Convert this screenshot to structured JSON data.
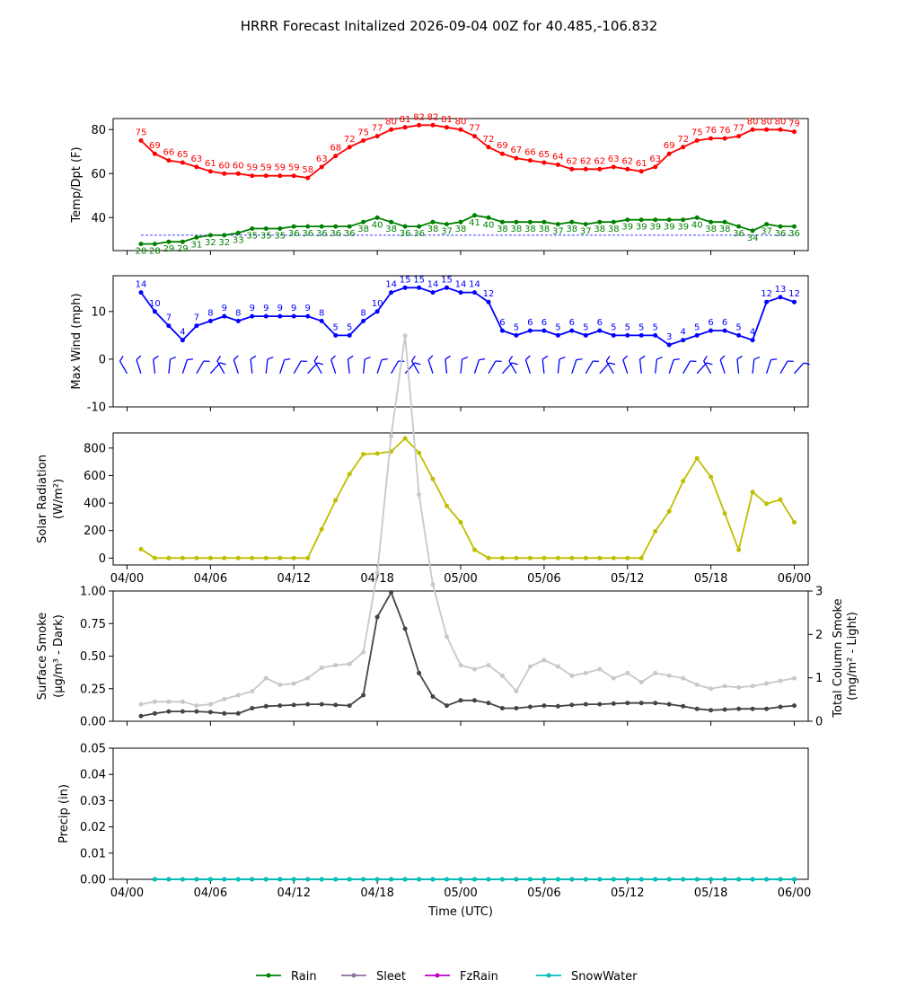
{
  "title": "HRRR Forecast Initalized 2026-09-04 00Z for 40.485,-106.832",
  "x_ticks": [
    "04/00",
    "04/06",
    "04/12",
    "04/18",
    "05/00",
    "05/06",
    "05/12",
    "05/18",
    "06/00"
  ],
  "x_label": "Time (UTC)",
  "legend": [
    {
      "label": "Rain",
      "color": "#008000"
    },
    {
      "label": "Sleet",
      "color": "#8e6f9e"
    },
    {
      "label": "FzRain",
      "color": "#c000c0"
    },
    {
      "label": "SnowWater",
      "color": "#00bfbf"
    }
  ],
  "chart_data": [
    {
      "type": "line",
      "ylabel": "Temp/Dpt (F)",
      "ylim": [
        25,
        85
      ],
      "yticks": [
        40,
        60,
        80
      ],
      "x_hours": [
        1,
        2,
        3,
        4,
        5,
        6,
        7,
        8,
        9,
        10,
        11,
        12,
        13,
        14,
        15,
        16,
        17,
        18,
        19,
        20,
        21,
        22,
        23,
        24,
        25,
        26,
        27,
        28,
        29,
        30,
        31,
        32,
        33,
        34,
        35,
        36,
        37,
        38,
        39,
        40,
        41,
        42,
        43,
        44,
        45,
        46,
        47,
        48
      ],
      "series": [
        {
          "name": "Temp",
          "color": "#ff0000",
          "values": [
            75,
            69,
            66,
            65,
            63,
            61,
            60,
            60,
            59,
            59,
            59,
            59,
            58,
            63,
            68,
            72,
            75,
            77,
            80,
            81,
            82,
            82,
            81,
            80,
            77,
            72,
            69,
            67,
            66,
            65,
            64,
            62,
            62,
            62,
            63,
            62,
            61,
            63,
            69,
            72,
            75,
            76,
            76,
            77,
            80,
            80,
            80,
            79
          ]
        },
        {
          "name": "Dewpoint",
          "color": "#008000",
          "values": [
            28,
            28,
            29,
            29,
            31,
            32,
            32,
            33,
            35,
            35,
            35,
            36,
            36,
            36,
            36,
            36,
            38,
            40,
            38,
            36,
            36,
            38,
            37,
            38,
            41,
            40,
            38,
            38,
            38,
            38,
            37,
            38,
            37,
            38,
            38,
            39,
            39,
            39,
            39,
            39,
            40,
            38,
            38,
            36,
            34,
            37,
            36,
            36
          ]
        }
      ],
      "reference_line": 32
    },
    {
      "type": "line",
      "ylabel": "Max Wind (mph)",
      "ylim": [
        -10,
        17.5
      ],
      "yticks": [
        -10,
        0,
        10
      ],
      "x_hours": [
        1,
        2,
        3,
        4,
        5,
        6,
        7,
        8,
        9,
        10,
        11,
        12,
        13,
        14,
        15,
        16,
        17,
        18,
        19,
        20,
        21,
        22,
        23,
        24,
        25,
        26,
        27,
        28,
        29,
        30,
        31,
        32,
        33,
        34,
        35,
        36,
        37,
        38,
        39,
        40,
        41,
        42,
        43,
        44,
        45,
        46,
        47,
        48
      ],
      "series": [
        {
          "name": "Max Wind",
          "color": "#0000ff",
          "values": [
            14,
            10,
            7,
            4,
            7,
            8,
            9,
            8,
            9,
            9,
            9,
            9,
            9,
            8,
            5,
            5,
            8,
            10,
            14,
            15,
            15,
            14,
            15,
            14,
            14,
            12,
            6,
            5,
            6,
            6,
            5,
            6,
            5,
            6,
            5,
            5,
            5,
            5,
            3,
            4,
            5,
            6,
            6,
            5,
            4,
            12,
            13,
            12
          ]
        }
      ],
      "barb_hours": [
        0,
        1,
        2,
        3,
        4,
        5,
        6,
        7,
        8,
        9,
        10,
        11,
        12,
        13,
        14,
        15,
        16,
        17,
        18,
        19,
        20,
        21,
        22,
        23,
        24,
        25,
        26,
        27,
        28,
        29,
        30,
        31,
        32,
        33,
        34,
        35,
        36,
        37,
        38,
        39,
        40,
        41,
        42,
        43,
        44,
        45,
        46,
        47,
        48
      ]
    },
    {
      "type": "line",
      "ylabel": "Solar Radiation (W/m²)",
      "ylim": [
        -50,
        910
      ],
      "yticks": [
        0,
        200,
        400,
        600,
        800
      ],
      "x_hours": [
        1,
        2,
        3,
        4,
        5,
        6,
        7,
        8,
        9,
        10,
        11,
        12,
        13,
        14,
        15,
        16,
        17,
        18,
        19,
        20,
        21,
        22,
        23,
        24,
        25,
        26,
        27,
        28,
        29,
        30,
        31,
        32,
        33,
        34,
        35,
        36,
        37,
        38,
        39,
        40,
        41,
        42,
        43,
        44,
        45,
        46,
        47,
        48
      ],
      "series": [
        {
          "name": "Solar Radiation",
          "color": "#bfbf00",
          "values": [
            65,
            0,
            0,
            0,
            0,
            0,
            0,
            0,
            0,
            0,
            0,
            0,
            0,
            210,
            420,
            610,
            755,
            760,
            775,
            870,
            765,
            575,
            380,
            260,
            60,
            0,
            0,
            0,
            0,
            0,
            0,
            0,
            0,
            0,
            0,
            0,
            0,
            195,
            340,
            560,
            725,
            590,
            325,
            60,
            480,
            395,
            425,
            260
          ]
        }
      ]
    },
    {
      "type": "line",
      "ylabel": "Surface Smoke (μg/m³ - Dark)",
      "ylabel_right": "Total Column Smoke (mg/m² - Light)",
      "ylim": [
        0,
        1.0
      ],
      "yticks": [
        0.0,
        0.25,
        0.5,
        0.75,
        1.0
      ],
      "ylim_right": [
        0,
        3.0
      ],
      "yticks_right": [
        0,
        1,
        2,
        3
      ],
      "x_hours": [
        1,
        2,
        3,
        4,
        5,
        6,
        7,
        8,
        9,
        10,
        11,
        12,
        13,
        14,
        15,
        16,
        17,
        18,
        19,
        20,
        21,
        22,
        23,
        24,
        25,
        26,
        27,
        28,
        29,
        30,
        31,
        32,
        33,
        34,
        35,
        36,
        37,
        38,
        39,
        40,
        41,
        42,
        43,
        44,
        45,
        46,
        47,
        48
      ],
      "series": [
        {
          "name": "Surface Smoke",
          "color": "#444444",
          "values": [
            0.04,
            0.06,
            0.075,
            0.075,
            0.075,
            0.07,
            0.06,
            0.06,
            0.1,
            0.115,
            0.12,
            0.125,
            0.13,
            0.13,
            0.125,
            0.12,
            0.2,
            0.8,
            0.99,
            0.71,
            0.37,
            0.19,
            0.12,
            0.16,
            0.16,
            0.14,
            0.1,
            0.1,
            0.11,
            0.12,
            0.115,
            0.125,
            0.13,
            0.13,
            0.135,
            0.14,
            0.14,
            0.14,
            0.13,
            0.115,
            0.095,
            0.085,
            0.09,
            0.095,
            0.095,
            0.095,
            0.11,
            0.12
          ]
        },
        {
          "name": "Total Column Smoke",
          "color": "#c8c8c8",
          "values": [
            0.13,
            0.15,
            0.15,
            0.15,
            0.12,
            0.13,
            0.17,
            0.2,
            0.23,
            0.33,
            0.28,
            0.29,
            0.33,
            0.41,
            0.43,
            0.44,
            0.53,
            1.14,
            2.19,
            2.96,
            1.74,
            1.05,
            0.65,
            0.43,
            0.4,
            0.43,
            0.35,
            0.23,
            0.42,
            0.47,
            0.42,
            0.35,
            0.37,
            0.4,
            0.33,
            0.37,
            0.3,
            0.37,
            0.35,
            0.33,
            0.28,
            0.25,
            0.27,
            0.26,
            0.27,
            0.29,
            0.31,
            0.33
          ]
        }
      ]
    },
    {
      "type": "line",
      "ylabel": "Precip (in)",
      "ylim": [
        0,
        0.05
      ],
      "yticks": [
        0.0,
        0.01,
        0.02,
        0.03,
        0.04,
        0.05
      ],
      "x_hours": [
        2,
        3,
        4,
        5,
        6,
        7,
        8,
        9,
        10,
        11,
        12,
        13,
        14,
        15,
        16,
        17,
        18,
        19,
        20,
        21,
        22,
        23,
        24,
        25,
        26,
        27,
        28,
        29,
        30,
        31,
        32,
        33,
        34,
        35,
        36,
        37,
        38,
        39,
        40,
        41,
        42,
        43,
        44,
        45,
        46,
        47,
        48
      ],
      "series": [
        {
          "name": "Rain",
          "color": "#008000",
          "values": [
            0,
            0,
            0,
            0,
            0,
            0,
            0,
            0,
            0,
            0,
            0,
            0,
            0,
            0,
            0,
            0,
            0,
            0,
            0,
            0,
            0,
            0,
            0,
            0,
            0,
            0,
            0,
            0,
            0,
            0,
            0,
            0,
            0,
            0,
            0,
            0,
            0,
            0,
            0,
            0,
            0,
            0,
            0,
            0,
            0,
            0,
            0
          ]
        },
        {
          "name": "SnowWater",
          "color": "#00bfbf",
          "values": [
            0,
            0,
            0,
            0,
            0,
            0,
            0,
            0,
            0,
            0,
            0,
            0,
            0,
            0,
            0,
            0,
            0,
            0,
            0,
            0,
            0,
            0,
            0,
            0,
            0,
            0,
            0,
            0,
            0,
            0,
            0,
            0,
            0,
            0,
            0,
            0,
            0,
            0,
            0,
            0,
            0,
            0,
            0,
            0,
            0,
            0,
            0
          ]
        }
      ]
    }
  ]
}
